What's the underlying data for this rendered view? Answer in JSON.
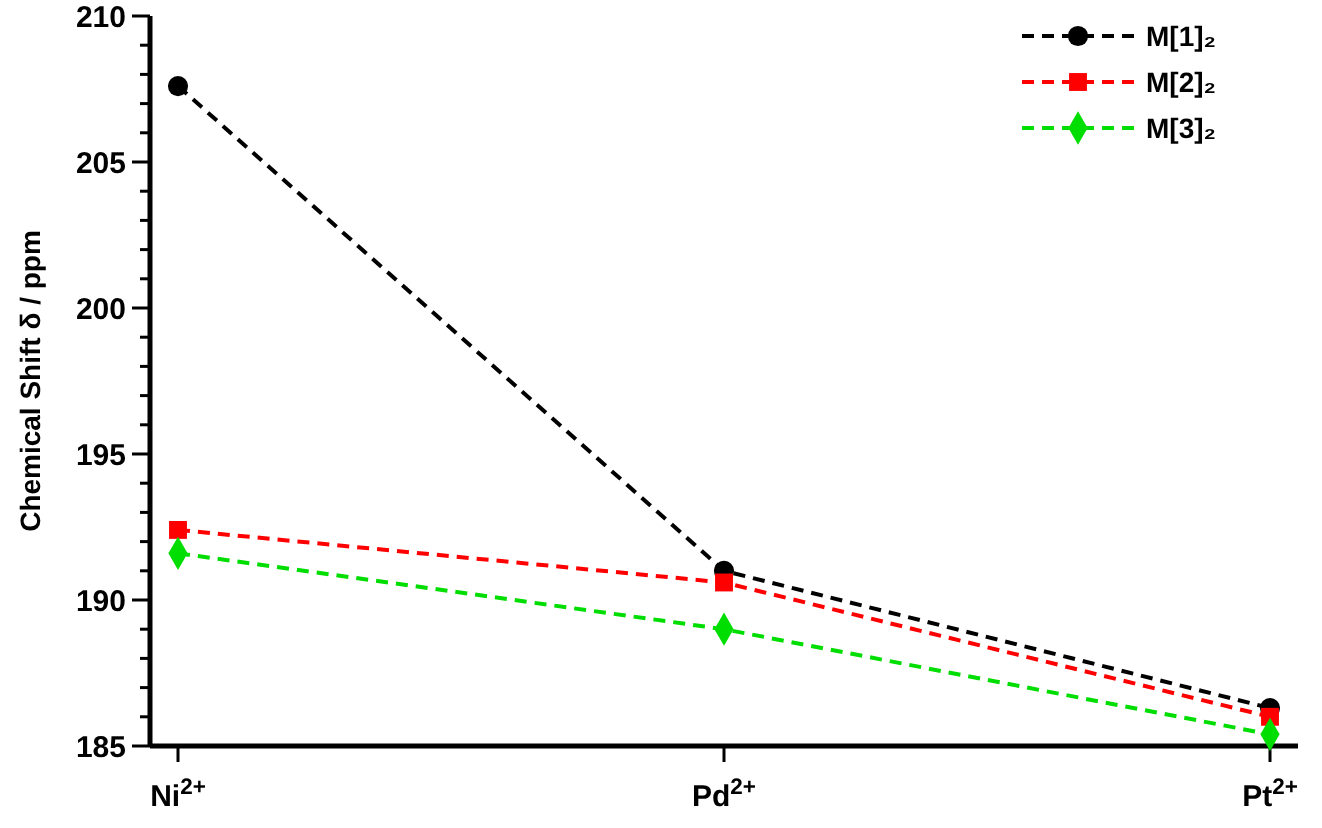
{
  "chart_data": {
    "type": "line",
    "ylabel": "Chemical Shift δ / ppm",
    "categories": [
      "Ni$^{2+}$",
      "Pd$^{2+}$",
      "Pt$^{2+}$"
    ],
    "series": [
      {
        "name": "M[1]₂",
        "color": "#000000",
        "marker": "circle",
        "values": [
          207.6,
          191.0,
          186.3
        ]
      },
      {
        "name": "M[2]₂",
        "color": "#ff0000",
        "marker": "square",
        "values": [
          192.4,
          190.6,
          186.0
        ]
      },
      {
        "name": "M[3]₂",
        "color": "#00dd00",
        "marker": "diamond",
        "values": [
          191.6,
          189.0,
          185.4
        ]
      }
    ],
    "ylim": [
      185,
      210
    ],
    "yticks": [
      185,
      {
        "value": 186,
        "label": null
      },
      {
        "value": 187,
        "label": null
      },
      {
        "value": 188,
        "label": null
      },
      {
        "value": 189,
        "label": null
      },
      190,
      {
        "value": 191,
        "label": null
      },
      {
        "value": 192,
        "label": null
      },
      {
        "value": 193,
        "label": null
      },
      {
        "value": 194,
        "label": null
      },
      195,
      {
        "value": 196,
        "label": null
      },
      {
        "value": 197,
        "label": null
      },
      {
        "value": 198,
        "label": null
      },
      {
        "value": 199,
        "label": null
      },
      200,
      {
        "value": 201,
        "label": null
      },
      {
        "value": 202,
        "label": null
      },
      {
        "value": 203,
        "label": null
      },
      {
        "value": 204,
        "label": null
      },
      205,
      {
        "value": 206,
        "label": null
      },
      {
        "value": 207,
        "label": null
      },
      {
        "value": 208,
        "label": null
      },
      {
        "value": 209,
        "label": null
      },
      210
    ],
    "line_style": "dashed",
    "legend": "top right",
    "grid": false
  }
}
